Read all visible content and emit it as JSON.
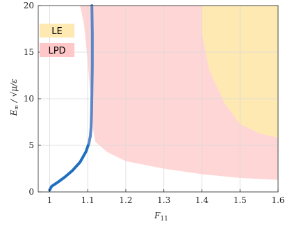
{
  "chart_data": {
    "type": "area",
    "title": "",
    "xlabel": "F11",
    "ylabel": "Em / √(μ/ε)",
    "xlim": [
      0.97,
      1.6
    ],
    "ylim": [
      0,
      20
    ],
    "grid": true,
    "x_ticks": [
      1,
      1.1,
      1.2,
      1.3,
      1.4,
      1.5,
      1.6
    ],
    "x_tick_labels": [
      "1",
      "1.1",
      "1.2",
      "1.3",
      "1.4",
      "1.5",
      "1.6"
    ],
    "y_ticks": [
      0,
      5,
      10,
      15,
      20
    ],
    "y_tick_labels": [
      "0",
      "5",
      "10",
      "15",
      "20"
    ],
    "legend": {
      "placement": "top-left",
      "entries": [
        {
          "label": "LE",
          "color": "#ffe9b3"
        },
        {
          "label": "LPD",
          "color": "#ffc7c7"
        }
      ]
    },
    "regions": [
      {
        "name": "LPD",
        "color": "#ffd6d6",
        "boundary": [
          [
            1.08,
            20
          ],
          [
            1.6,
            20
          ],
          [
            1.6,
            1.3
          ],
          [
            1.5,
            1.5
          ],
          [
            1.4,
            1.9
          ],
          [
            1.3,
            2.5
          ],
          [
            1.2,
            3.3
          ],
          [
            1.15,
            4.3
          ],
          [
            1.12,
            5.4
          ],
          [
            1.115,
            6.5
          ],
          [
            1.11,
            9
          ],
          [
            1.1,
            14
          ],
          [
            1.09,
            18
          ],
          [
            1.08,
            20
          ]
        ]
      },
      {
        "name": "LE",
        "color": "#ffe9b3",
        "boundary": [
          [
            1.4,
            20
          ],
          [
            1.6,
            20
          ],
          [
            1.6,
            5.8
          ],
          [
            1.55,
            6.3
          ],
          [
            1.5,
            7.3
          ],
          [
            1.46,
            9.5
          ],
          [
            1.42,
            13
          ],
          [
            1.4,
            17
          ],
          [
            1.4,
            20
          ]
        ]
      }
    ],
    "series": [
      {
        "color": "#1f6fbf",
        "upper_color": "#5a86c8",
        "x": [
          1.0,
          1.005,
          1.02,
          1.04,
          1.06,
          1.08,
          1.095,
          1.103,
          1.107,
          1.109,
          1.11,
          1.111,
          1.112,
          1.112,
          1.111
        ],
        "y": [
          0.2,
          0.6,
          1.0,
          1.6,
          2.3,
          3.2,
          4.3,
          5.2,
          6.0,
          7.0,
          8.5,
          10.5,
          13.5,
          17,
          20
        ]
      }
    ]
  }
}
